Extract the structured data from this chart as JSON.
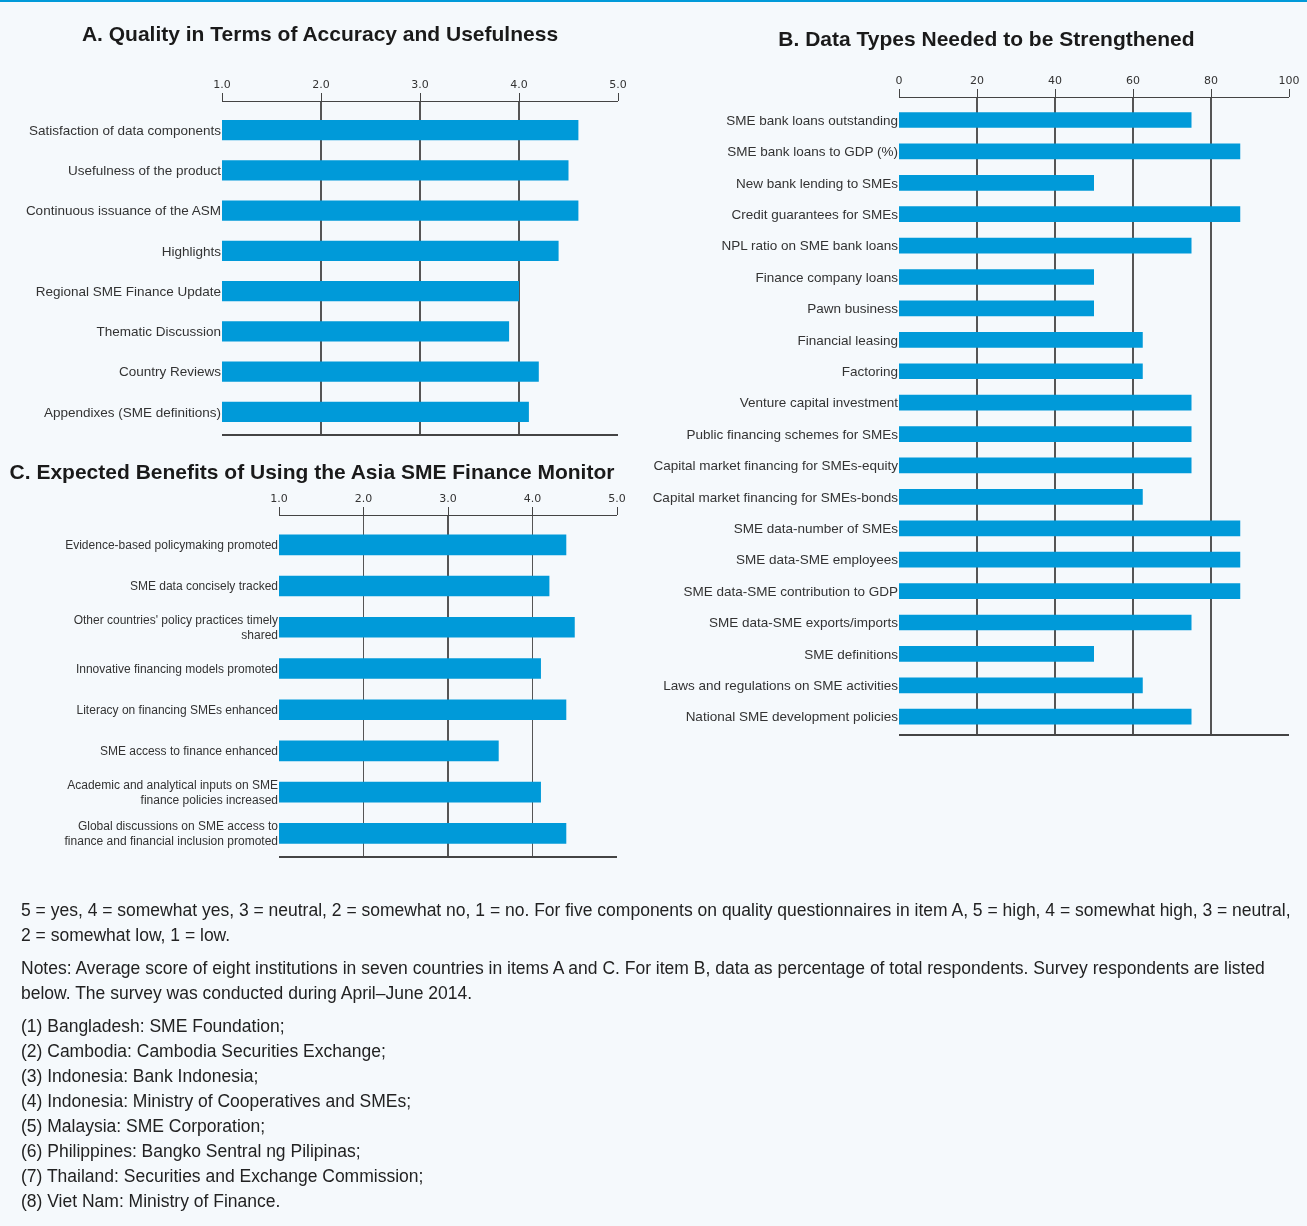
{
  "chart_data": [
    {
      "type": "bar",
      "title": "A. Quality in Terms of Accuracy and Usefulness",
      "orientation": "horizontal",
      "color": "#009ad9",
      "grid": "x",
      "xlim": [
        1,
        5
      ],
      "xticks": [
        {
          "value": 1,
          "label": "1.0"
        },
        {
          "value": 2,
          "label": "2.0"
        },
        {
          "value": 3,
          "label": "3.0"
        },
        {
          "value": 4,
          "label": "4.0"
        },
        {
          "value": 5,
          "label": "5.0"
        }
      ],
      "categories": [
        "Satisfaction of data components",
        "Usefulness of the product",
        "Continuous issuance of the ASM",
        "Highlights",
        "Regional SME Finance Update",
        "Thematic Discussion",
        "Country Reviews",
        "Appendixes (SME definitions)"
      ],
      "values": [
        4.6,
        4.5,
        4.6,
        4.4,
        4.0,
        3.9,
        4.2,
        4.1
      ]
    },
    {
      "type": "bar",
      "title": "B. Data Types Needed to be Strengthened",
      "orientation": "horizontal",
      "color": "#009ad9",
      "grid": "x",
      "xlim": [
        0,
        100
      ],
      "xticks": [
        0,
        20,
        40,
        60,
        80,
        100
      ],
      "categories": [
        "SME bank loans outstanding",
        "SME bank loans to GDP (%)",
        "New bank lending to SMEs",
        "Credit guarantees for SMEs",
        "NPL ratio on SME bank loans",
        "Finance company loans",
        "Pawn business",
        "Financial leasing",
        "Factoring",
        "Venture capital investment",
        "Public financing schemes for SMEs",
        "Capital market financing for SMEs-equity",
        "Capital market financing for SMEs-bonds",
        "SME data-number of SMEs",
        "SME data-SME employees",
        "SME data-SME contribution to GDP",
        "SME data-SME exports/imports",
        "SME definitions",
        "Laws and regulations on SME activities",
        "National SME development policies"
      ],
      "values": [
        75,
        87.5,
        50,
        87.5,
        75,
        50,
        50,
        62.5,
        62.5,
        75,
        75,
        75,
        62.5,
        87.5,
        87.5,
        87.5,
        75,
        50,
        62.5,
        75
      ]
    },
    {
      "type": "bar",
      "title": "C. Expected Benefits of Using the Asia SME Finance Monitor",
      "orientation": "horizontal",
      "color": "#009ad9",
      "grid": "x",
      "xlim": [
        1,
        5
      ],
      "xticks": [
        {
          "value": 1,
          "label": "1.0"
        },
        {
          "value": 2,
          "label": "2.0"
        },
        {
          "value": 3,
          "label": "3.0"
        },
        {
          "value": 4,
          "label": "4.0"
        },
        {
          "value": 5,
          "label": "5.0"
        }
      ],
      "categories": [
        "Evidence-based policymaking promoted",
        "SME data concisely tracked",
        "Other countries' policy practices timely shared",
        "Innovative financing models promoted",
        "Literacy on financing SMEs enhanced",
        "SME access to finance enhanced",
        "Academic and analytical inputs on SME finance policies increased",
        "Global discussions on SME access to finance and financial inclusion promoted"
      ],
      "values": [
        4.4,
        4.2,
        4.5,
        4.1,
        4.4,
        3.6,
        4.1,
        4.4
      ],
      "annotations": [
        "5 = yes, 4 = somewhat yes, 3 = neutral, 2 = somewhat no, 1 = no. For five components on quality questionnaires in item A, 5 = high, 4 = somewhat high, 3 = neutral, 2 = somewhat low, 1 = low.",
        "Notes: Average score of eight institutions in seven countries in items A and C. For item B, data as percentage of total respondents. Survey respondents are listed below. The survey was conducted during April–June 2014.",
        "(1)  Bangladesh: SME Foundation;",
        "(2)  Cambodia: Cambodia Securities Exchange;",
        "(3)  Indonesia: Bank Indonesia;",
        "(4)  Indonesia: Ministry of Cooperatives and SMEs;",
        "(5)  Malaysia: SME Corporation;",
        "(6)  Philippines: Bangko Sentral ng Pilipinas;",
        "(7)  Thailand: Securities and Exchange Commission;",
        "(8)  Viet Nam: Ministry of Finance."
      ]
    }
  ]
}
